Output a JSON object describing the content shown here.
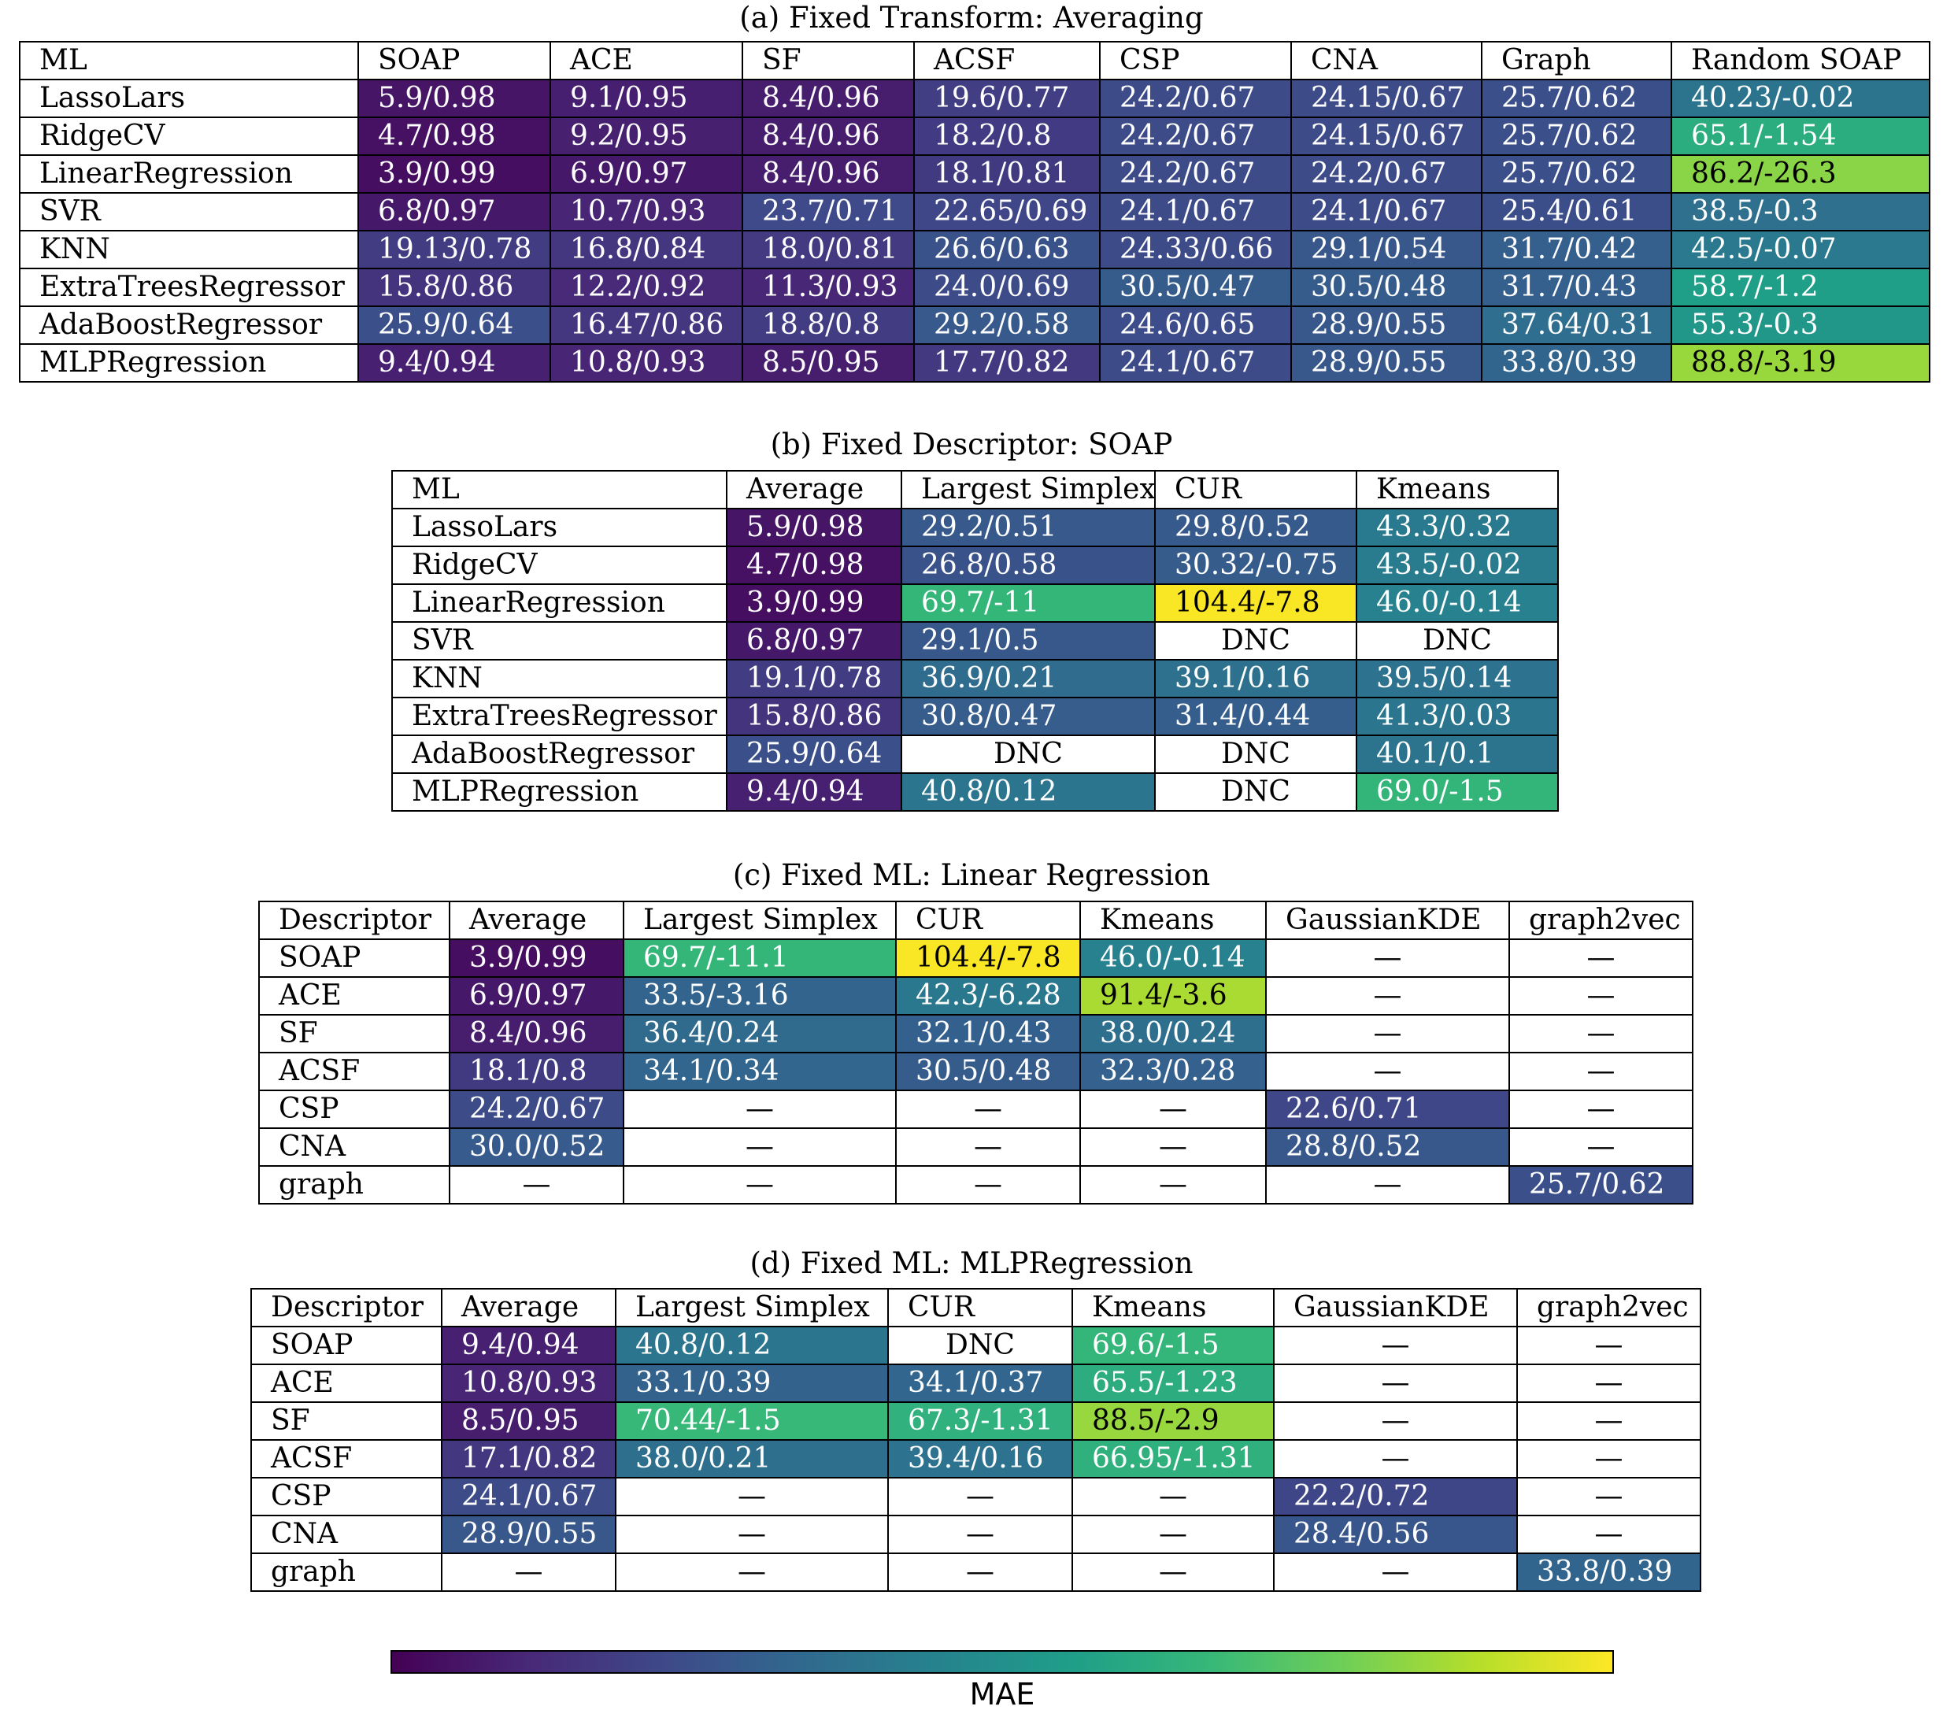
{
  "colorbar": {
    "label": "MAE",
    "colormap": "viridis",
    "range": [
      0,
      105
    ]
  },
  "colors": {
    "viridis_low": "#440154",
    "viridis_mid": "#21918c",
    "viridis_high": "#fde725",
    "text_light": "#ffffff",
    "text_dark": "#000000",
    "border": "#000000"
  },
  "chart_data": [
    {
      "type": "table",
      "title": "(a) Fixed Transform: Averaging",
      "columns": [
        "ML",
        "SOAP",
        "ACE",
        "SF",
        "ACSF",
        "CSP",
        "CNA",
        "Graph",
        "Random SOAP"
      ],
      "rows": [
        {
          "label": "LassoLars",
          "cells": [
            "5.9/0.98",
            "9.1/0.95",
            "8.4/0.96",
            "19.6/0.77",
            "24.2/0.67",
            "24.15/0.67",
            "25.7/0.62",
            "40.23/-0.02"
          ]
        },
        {
          "label": "RidgeCV",
          "cells": [
            "4.7/0.98",
            "9.2/0.95",
            "8.4/0.96",
            "18.2/0.8",
            "24.2/0.67",
            "24.15/0.67",
            "25.7/0.62",
            "65.1/-1.54"
          ]
        },
        {
          "label": "LinearRegression",
          "cells": [
            "3.9/0.99",
            "6.9/0.97",
            "8.4/0.96",
            "18.1/0.81",
            "24.2/0.67",
            "24.2/0.67",
            "25.7/0.62",
            "86.2/-26.3"
          ]
        },
        {
          "label": "SVR",
          "cells": [
            "6.8/0.97",
            "10.7/0.93",
            "23.7/0.71",
            "22.65/0.69",
            "24.1/0.67",
            "24.1/0.67",
            "25.4/0.61",
            "38.5/-0.3"
          ]
        },
        {
          "label": "KNN",
          "cells": [
            "19.13/0.78",
            "16.8/0.84",
            "18.0/0.81",
            "26.6/0.63",
            "24.33/0.66",
            "29.1/0.54",
            "31.7/0.42",
            "42.5/-0.07"
          ]
        },
        {
          "label": "ExtraTreesRegressor",
          "cells": [
            "15.8/0.86",
            "12.2/0.92",
            "11.3/0.93",
            "24.0/0.69",
            "30.5/0.47",
            "30.5/0.48",
            "31.7/0.43",
            "58.7/-1.2"
          ]
        },
        {
          "label": "AdaBoostRegressor",
          "cells": [
            "25.9/0.64",
            "16.47/0.86",
            "18.8/0.8",
            "29.2/0.58",
            "24.6/0.65",
            "28.9/0.55",
            "37.64/0.31",
            "55.3/-0.3"
          ]
        },
        {
          "label": "MLPRegression",
          "cells": [
            "9.4/0.94",
            "10.8/0.93",
            "8.5/0.95",
            "17.7/0.82",
            "24.1/0.67",
            "28.9/0.55",
            "33.8/0.39",
            "88.8/-3.19"
          ]
        }
      ]
    },
    {
      "type": "table",
      "title": "(b) Fixed Descriptor: SOAP",
      "columns": [
        "ML",
        "Average",
        "Largest Simplex",
        "CUR",
        "Kmeans"
      ],
      "rows": [
        {
          "label": "LassoLars",
          "cells": [
            "5.9/0.98",
            "29.2/0.51",
            "29.8/0.52",
            "43.3/0.32"
          ]
        },
        {
          "label": "RidgeCV",
          "cells": [
            "4.7/0.98",
            "26.8/0.58",
            "30.32/-0.75",
            "43.5/-0.02"
          ]
        },
        {
          "label": "LinearRegression",
          "cells": [
            "3.9/0.99",
            "69.7/-11",
            "104.4/-7.8",
            "46.0/-0.14"
          ]
        },
        {
          "label": "SVR",
          "cells": [
            "6.8/0.97",
            "29.1/0.5",
            "DNC",
            "DNC"
          ]
        },
        {
          "label": "KNN",
          "cells": [
            "19.1/0.78",
            "36.9/0.21",
            "39.1/0.16",
            "39.5/0.14"
          ]
        },
        {
          "label": "ExtraTreesRegressor",
          "cells": [
            "15.8/0.86",
            "30.8/0.47",
            "31.4/0.44",
            "41.3/0.03"
          ]
        },
        {
          "label": "AdaBoostRegressor",
          "cells": [
            "25.9/0.64",
            "DNC",
            "DNC",
            "40.1/0.1"
          ]
        },
        {
          "label": "MLPRegression",
          "cells": [
            "9.4/0.94",
            "40.8/0.12",
            "DNC",
            "69.0/-1.5"
          ]
        }
      ]
    },
    {
      "type": "table",
      "title": "(c) Fixed ML: Linear Regression",
      "columns": [
        "Descriptor",
        "Average",
        "Largest Simplex",
        "CUR",
        "Kmeans",
        "GaussianKDE",
        "graph2vec"
      ],
      "rows": [
        {
          "label": "SOAP",
          "cells": [
            "3.9/0.99",
            "69.7/-11.1",
            "104.4/-7.8",
            "46.0/-0.14",
            "—",
            "—"
          ]
        },
        {
          "label": "ACE",
          "cells": [
            "6.9/0.97",
            "33.5/-3.16",
            "42.3/-6.28",
            "91.4/-3.6",
            "—",
            "—"
          ]
        },
        {
          "label": "SF",
          "cells": [
            "8.4/0.96",
            "36.4/0.24",
            "32.1/0.43",
            "38.0/0.24",
            "—",
            "—"
          ]
        },
        {
          "label": "ACSF",
          "cells": [
            "18.1/0.8",
            "34.1/0.34",
            "30.5/0.48",
            "32.3/0.28",
            "—",
            "—"
          ]
        },
        {
          "label": "CSP",
          "cells": [
            "24.2/0.67",
            "—",
            "—",
            "—",
            "22.6/0.71",
            "—"
          ]
        },
        {
          "label": "CNA",
          "cells": [
            "30.0/0.52",
            "—",
            "—",
            "—",
            "28.8/0.52",
            "—"
          ]
        },
        {
          "label": "graph",
          "cells": [
            "—",
            "—",
            "—",
            "—",
            "—",
            "25.7/0.62"
          ]
        }
      ]
    },
    {
      "type": "table",
      "title": "(d) Fixed ML: MLPRegression",
      "columns": [
        "Descriptor",
        "Average",
        "Largest Simplex",
        "CUR",
        "Kmeans",
        "GaussianKDE",
        "graph2vec"
      ],
      "rows": [
        {
          "label": "SOAP",
          "cells": [
            "9.4/0.94",
            "40.8/0.12",
            "DNC",
            "69.6/-1.5",
            "—",
            "—"
          ]
        },
        {
          "label": "ACE",
          "cells": [
            "10.8/0.93",
            "33.1/0.39",
            "34.1/0.37",
            "65.5/-1.23",
            "—",
            "—"
          ]
        },
        {
          "label": "SF",
          "cells": [
            "8.5/0.95",
            "70.44/-1.5",
            "67.3/-1.31",
            "88.5/-2.9",
            "—",
            "—"
          ]
        },
        {
          "label": "ACSF",
          "cells": [
            "17.1/0.82",
            "38.0/0.21",
            "39.4/0.16",
            "66.95/-1.31",
            "—",
            "—"
          ]
        },
        {
          "label": "CSP",
          "cells": [
            "24.1/0.67",
            "—",
            "—",
            "—",
            "22.2/0.72",
            "—"
          ]
        },
        {
          "label": "CNA",
          "cells": [
            "28.9/0.55",
            "—",
            "—",
            "—",
            "28.4/0.56",
            "—"
          ]
        },
        {
          "label": "graph",
          "cells": [
            "—",
            "—",
            "—",
            "—",
            "—",
            "33.8/0.39"
          ]
        }
      ]
    }
  ]
}
